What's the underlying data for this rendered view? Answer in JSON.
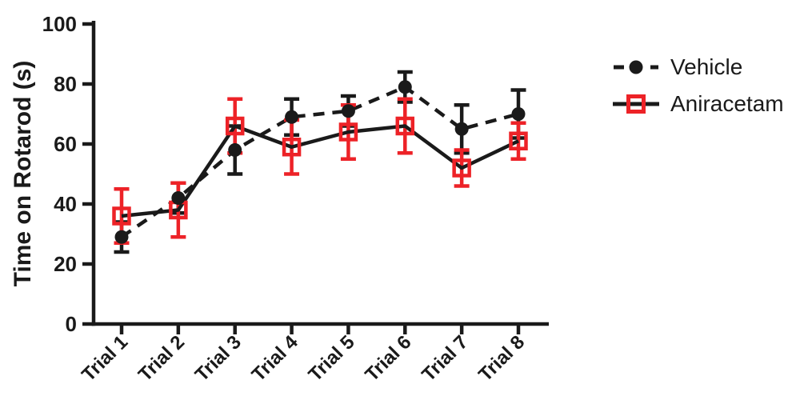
{
  "figure": {
    "background": "#ffffff"
  },
  "chart_data": {
    "type": "line",
    "title": "",
    "xlabel": "",
    "ylabel": "Time on Rotarod (s)",
    "ylim": [
      0,
      100
    ],
    "yticks": [
      0,
      20,
      40,
      60,
      80,
      100
    ],
    "categories": [
      "Trial 1",
      "Trial 2",
      "Trial 3",
      "Trial 4",
      "Trial 5",
      "Trial 6",
      "Trial 7",
      "Trial 8"
    ],
    "grid": false,
    "legend_position": "right",
    "axis_color": "#1a1a1a",
    "series": [
      {
        "name": "Vehicle",
        "line_style": "dashed",
        "line_color": "#1a1a1a",
        "marker": "filled-circle",
        "marker_color": "#1a1a1a",
        "error_color": "#1a1a1a",
        "values": [
          29,
          42,
          58,
          69,
          71,
          79,
          65,
          70
        ],
        "errors": [
          5,
          5,
          8,
          6,
          5,
          5,
          8,
          8
        ]
      },
      {
        "name": "Aniracetam",
        "line_style": "solid",
        "line_color": "#1a1a1a",
        "marker": "open-square",
        "marker_color": "#ed2227",
        "error_color": "#ed2227",
        "values": [
          36,
          38,
          66,
          59,
          64,
          66,
          52,
          61
        ],
        "errors": [
          9,
          9,
          9,
          9,
          9,
          9,
          6,
          6
        ]
      }
    ]
  }
}
